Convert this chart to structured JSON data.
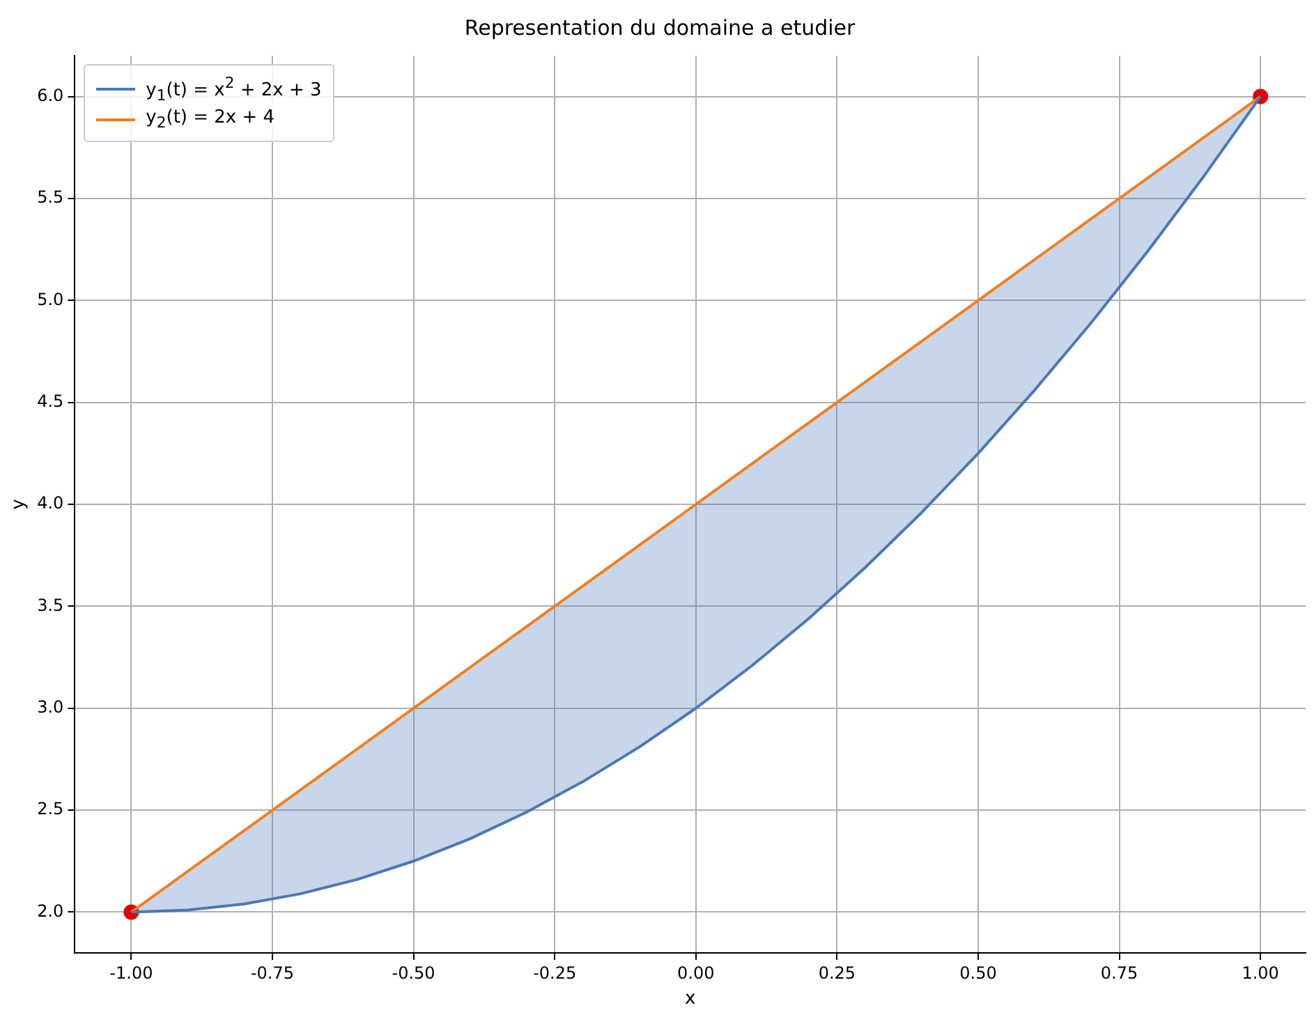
{
  "chart_data": {
    "type": "line",
    "title": "Representation du domaine a etudier",
    "xlabel": "x",
    "ylabel": "y",
    "x": [
      -1,
      -0.9,
      -0.8,
      -0.7,
      -0.6,
      -0.5,
      -0.4,
      -0.3,
      -0.2,
      -0.1,
      0,
      0.1,
      0.2,
      0.3,
      0.4,
      0.5,
      0.6,
      0.7,
      0.8,
      0.9,
      1
    ],
    "series": [
      {
        "name": "y$_{1}$(t) = x$^{2}$ + 2x + 3",
        "color": "#4a78b5",
        "values": [
          2,
          2.01,
          2.04,
          2.09,
          2.16,
          2.25,
          2.36,
          2.49,
          2.64,
          2.81,
          3,
          3.21,
          3.44,
          3.69,
          3.96,
          4.25,
          4.56,
          4.89,
          5.24,
          5.61,
          6
        ],
        "lower": [
          2,
          2.01,
          2.04,
          2.09,
          2.16,
          2.25,
          2.36,
          2.49,
          2.64,
          2.81,
          3,
          3.21,
          3.44,
          3.69,
          3.96,
          4.25,
          4.56,
          4.89,
          5.24,
          5.61,
          6
        ],
        "upper": [
          2,
          2.2,
          2.4,
          2.6,
          2.8,
          3,
          3.2,
          3.4,
          3.6,
          3.8,
          4,
          4.2,
          4.4,
          4.6,
          4.8,
          5,
          5.2,
          5.4,
          5.6,
          5.8,
          6
        ]
      },
      {
        "name": "y$_{2}$(t) = 2x + 4",
        "color": "#f07f22",
        "values": [
          2,
          2.2,
          2.4,
          2.6,
          2.8,
          3,
          3.2,
          3.4,
          3.6,
          3.8,
          4,
          4.2,
          4.4,
          4.6,
          4.8,
          5,
          5.2,
          5.4,
          5.6,
          5.8,
          6
        ]
      },
      {
        "type": "scatter",
        "color": "#e00000",
        "x": [
          -1,
          1
        ],
        "values": [
          2,
          6
        ],
        "marker": "circle"
      }
    ],
    "xlim": [
      -1.1,
      1.08
    ],
    "ylim": [
      1.8,
      6.2
    ],
    "xticks": [
      {
        "value": -1,
        "label": "-1.00"
      },
      {
        "value": -0.75,
        "label": "-0.75"
      },
      {
        "value": -0.5,
        "label": "-0.50"
      },
      {
        "value": -0.25,
        "label": "-0.25"
      },
      {
        "value": 0,
        "label": "0.00"
      },
      {
        "value": 0.25,
        "label": "0.25"
      },
      {
        "value": 0.5,
        "label": "0.50"
      },
      {
        "value": 0.75,
        "label": "0.75"
      },
      {
        "value": 1,
        "label": "1.00"
      }
    ],
    "yticks": [
      {
        "value": 2,
        "label": "2.0"
      },
      {
        "value": 2.5,
        "label": "2.5"
      },
      {
        "value": 3,
        "label": "3.0"
      },
      {
        "value": 3.5,
        "label": "3.5"
      },
      {
        "value": 4,
        "label": "4.0"
      },
      {
        "value": 4.5,
        "label": "4.5"
      },
      {
        "value": 5,
        "label": "5.0"
      },
      {
        "value": 5.5,
        "label": "5.5"
      },
      {
        "value": 6,
        "label": "6.0"
      }
    ],
    "grid": true,
    "legend": "top left",
    "marker": "none",
    "line_style": "solid"
  }
}
